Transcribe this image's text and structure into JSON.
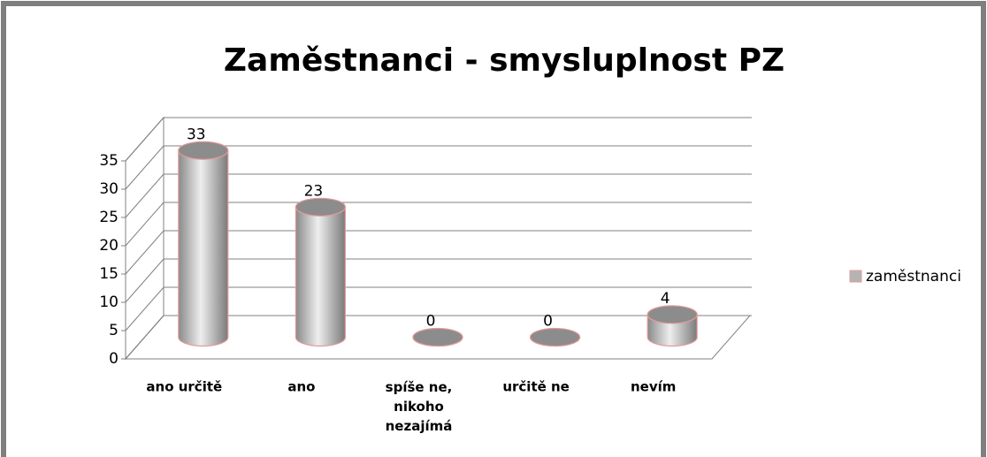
{
  "chart_data": {
    "type": "bar3d",
    "title": "Zaměstnanci - smysluplnost PZ",
    "categories": [
      "ano určitě",
      "ano",
      "spíše ne, nikoho nezajímá",
      "určitě ne",
      "nevím"
    ],
    "series": [
      {
        "name": "zaměstnanci",
        "color": "#b4b4b4",
        "values": [
          33,
          23,
          0,
          0,
          4
        ]
      }
    ],
    "ylim": [
      0,
      35
    ],
    "yticks": [
      0,
      5,
      10,
      15,
      20,
      25,
      30,
      35
    ],
    "grid": true,
    "legend": "right"
  }
}
